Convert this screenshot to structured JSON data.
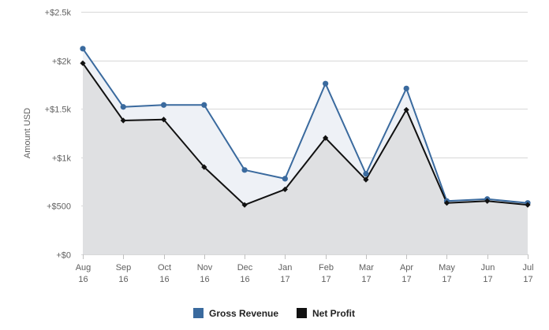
{
  "chart_data": {
    "type": "area",
    "title": "",
    "ylabel": "Amount USD",
    "xlabel": "",
    "categories": [
      [
        "Aug",
        "16"
      ],
      [
        "Sep",
        "16"
      ],
      [
        "Oct",
        "16"
      ],
      [
        "Nov",
        "16"
      ],
      [
        "Dec",
        "16"
      ],
      [
        "Jan",
        "17"
      ],
      [
        "Feb",
        "17"
      ],
      [
        "Mar",
        "17"
      ],
      [
        "Apr",
        "17"
      ],
      [
        "May",
        "17"
      ],
      [
        "Jun",
        "17"
      ],
      [
        "Jul",
        "17"
      ]
    ],
    "ylim": [
      0,
      2500
    ],
    "yticks": [
      {
        "value": 0,
        "label": "+$0"
      },
      {
        "value": 500,
        "label": "+$500"
      },
      {
        "value": 1000,
        "label": "+$1k"
      },
      {
        "value": 1500,
        "label": "+$1.5k"
      },
      {
        "value": 2000,
        "label": "+$2k"
      },
      {
        "value": 2500,
        "label": "+$2.5k"
      }
    ],
    "grid": true,
    "legend_position": "bottom-center",
    "series": [
      {
        "name": "Gross Revenue",
        "color": "#3a6a9e",
        "fill": "#eef1f6",
        "marker": "circle",
        "values": [
          2120,
          1520,
          1540,
          1540,
          870,
          780,
          1760,
          830,
          1710,
          550,
          570,
          530
        ]
      },
      {
        "name": "Net Profit",
        "color": "#111111",
        "fill": "#dfe0e2",
        "marker": "diamond",
        "values": [
          1970,
          1380,
          1390,
          900,
          510,
          670,
          1200,
          770,
          1490,
          530,
          550,
          510
        ]
      }
    ]
  }
}
